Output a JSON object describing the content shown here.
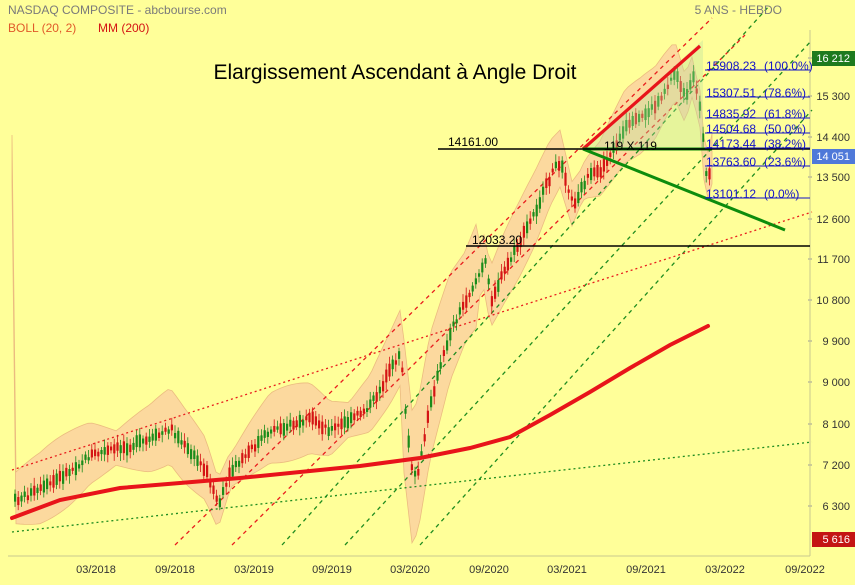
{
  "header": {
    "instrument": "NASDAQ COMPOSITE - abcbourse.com",
    "period": "5 ANS - HEBDO",
    "boll_label": "BOLL (20, 2)",
    "mm_label": "MM (200)"
  },
  "colors": {
    "background": "#ffff99",
    "boll_band": "#fcd3a0",
    "boll_edge": "#e8b07c",
    "mm200": "#e8141a",
    "candle_up": "#1a8c1a",
    "candle_down": "#d41414",
    "fib_text": "#1313c8",
    "red_dotted": "#e81d1d",
    "green_dotted": "#1f8c1f",
    "trend_green": "#0d8c0d",
    "price_box": "#4f79d9",
    "top_box": "#1e7a1e",
    "low_box": "#c41414"
  },
  "chart_data": {
    "type": "candlestick",
    "title": "Elargissement Ascendant à Angle Droit",
    "x_ticks": [
      "03/2018",
      "09/2018",
      "03/2019",
      "09/2019",
      "03/2020",
      "09/2020",
      "03/2021",
      "09/2021",
      "03/2022",
      "09/2022"
    ],
    "y_ticks": [
      "16 212",
      "15 300",
      "14 400",
      "14 051",
      "13 500",
      "12 600",
      "11 700",
      "10 800",
      "9 900",
      "9 000",
      "8 100",
      "7 200",
      "6 300",
      "5 616"
    ],
    "ylim": [
      5616,
      16212
    ],
    "last_price": "14 051",
    "period_high": "16 212",
    "period_low": "5 616",
    "horizontal_levels": [
      {
        "label": "14161.00",
        "value": 14161
      },
      {
        "label": "12033.20",
        "value": 12033.2
      }
    ],
    "fibonacci": [
      {
        "label": "15908.23",
        "pct": "(100.0%)",
        "value": 15908.23
      },
      {
        "label": "15307.51",
        "pct": "(78.6%)",
        "value": 15307.51
      },
      {
        "label": "14835.92",
        "pct": "(61.8%)",
        "value": 14835.92
      },
      {
        "label": "14504.68",
        "pct": "(50.0%)",
        "value": 14504.68
      },
      {
        "label": "14173.44",
        "pct": "(38.2%)",
        "value": 14173.44
      },
      {
        "label": "13763.60",
        "pct": "(23.6%)",
        "value": 13763.6
      },
      {
        "label": "13101.12",
        "pct": "(0.0%)",
        "value": 13101.12
      }
    ],
    "annotations": [
      "119 X 119"
    ],
    "series": [
      {
        "name": "BOLL (20, 2)",
        "kind": "band"
      },
      {
        "name": "MM (200)",
        "kind": "line"
      }
    ]
  }
}
